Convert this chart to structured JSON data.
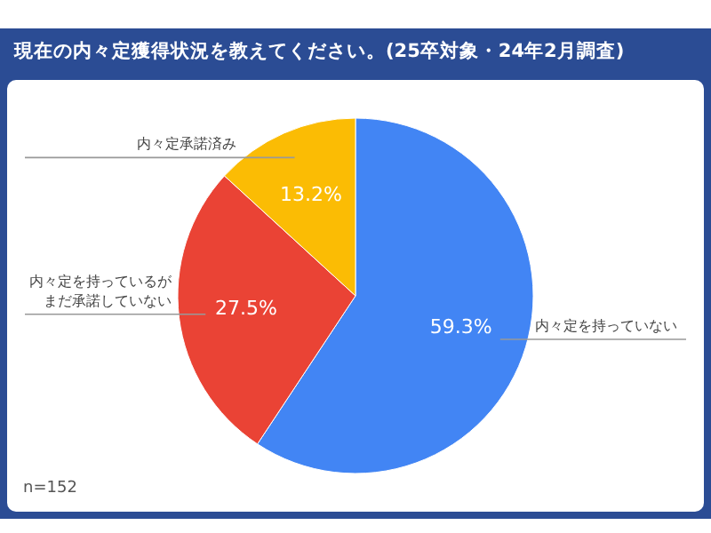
{
  "chart_data": {
    "type": "pie",
    "title": "現在の内々定獲得状況を教えてください。(25卒対象・24年2月調査)",
    "categories": [
      "内々定を持っていない",
      "内々定を持っているがまだ承諾していない",
      "内々定承諾済み"
    ],
    "values": [
      59.3,
      27.5,
      13.2
    ],
    "colors": [
      "#4285f4",
      "#ea4335",
      "#fbbc04"
    ],
    "value_labels": [
      "59.3%",
      "27.5%",
      "13.2%"
    ],
    "annotations": [
      "n=152"
    ]
  }
}
